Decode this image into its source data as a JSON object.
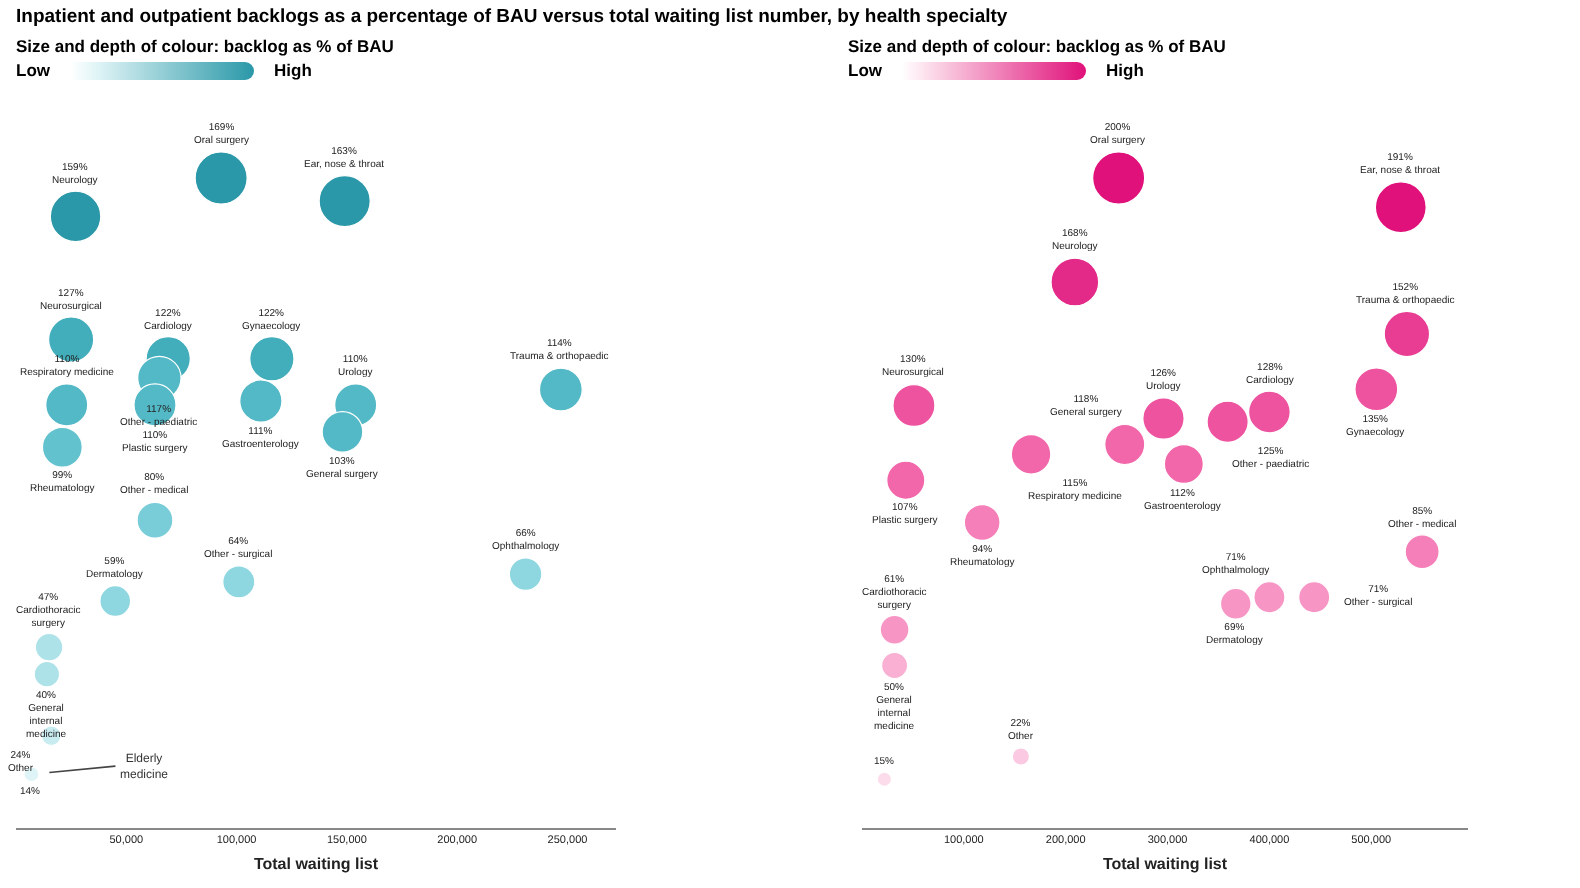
{
  "chart_data": [
    {
      "type": "bubble",
      "title": "Inpatient and outpatient backlogs as a percentage of BAU versus total waiting list number, by health specialty",
      "legend_title": "Size and depth of colour:  backlog as % of BAU",
      "xlabel": "Total waiting list",
      "tick_labels": "x",
      "xlim": [
        0,
        272000
      ],
      "xticks": [
        {
          "value": 50000,
          "label": "50,000"
        },
        {
          "value": 100000,
          "label": "100,000"
        },
        {
          "value": 150000,
          "label": "150,000"
        },
        {
          "value": 200000,
          "label": "200,000"
        },
        {
          "value": 250000,
          "label": "250,000"
        }
      ],
      "x": [
        27000,
        93000,
        149000,
        69000,
        116000,
        25000,
        65000,
        154000,
        247000,
        23000,
        111000,
        63000,
        148000,
        21000,
        63000,
        101000,
        231000,
        15000,
        45000,
        14000,
        16000,
        7000
      ],
      "values": [
        159,
        169,
        163,
        122,
        122,
        127,
        117,
        110,
        114,
        110,
        111,
        110,
        103,
        99,
        80,
        64,
        66,
        47,
        59,
        40,
        24,
        14
      ],
      "sizes": [
        159,
        169,
        163,
        122,
        122,
        127,
        117,
        110,
        114,
        110,
        111,
        110,
        103,
        99,
        80,
        64,
        66,
        47,
        59,
        40,
        24,
        14
      ],
      "colors": [
        "#2a98a8",
        "#2a98a8",
        "#2a98a8",
        "#42adbb",
        "#42adbb",
        "#42adbb",
        "#53b9c6",
        "#53b9c6",
        "#53b9c6",
        "#53b9c6",
        "#53b9c6",
        "#53b9c6",
        "#53b9c6",
        "#62c3cf",
        "#78cdd8",
        "#8fd7e0",
        "#8fd7e0",
        "#aee2e9",
        "#8fd7e0",
        "#aee2e9",
        "#c9ecf0",
        "#dff4f6"
      ],
      "value_labels": [
        "159%\nNeurology",
        "169%\nOral surgery",
        "163%\nEar, nose & throat",
        "122%\nCardiology",
        "122%\nGynaecology",
        "127%\nNeurosurgical",
        "117%\nOther - paediatric",
        "110%\nUrology",
        "114%\nTrauma & orthopaedic",
        "110%\nRespiratory medicine",
        "111%\nGastroenterology",
        "110%\nPlastic surgery",
        "103%\nGeneral surgery",
        "99%\nRheumatology",
        "80%\nOther - medical",
        "64%\nOther - surgical",
        "66%\nOphthalmology",
        "47%\nCardiothoracic\nsurgery",
        "59%\nDermatology",
        "40%\nGeneral\ninternal\nmedicine",
        "24%\nOther",
        "14%"
      ],
      "annotations": [
        "Low",
        "High",
        {
          "text": "Elderly\nmedicine",
          "x": 7000,
          "y": 14
        }
      ]
    },
    {
      "type": "bubble",
      "legend_title": "Size and depth of colour:  backlog as % of BAU",
      "xlabel": "Total waiting list",
      "tick_labels": "x",
      "xlim": [
        0,
        595000
      ],
      "xticks": [
        {
          "value": 100000,
          "label": "100,000"
        },
        {
          "value": 200000,
          "label": "200,000"
        },
        {
          "value": 300000,
          "label": "300,000"
        },
        {
          "value": 400000,
          "label": "400,000"
        },
        {
          "value": 500000,
          "label": "500,000"
        }
      ],
      "x": [
        252000,
        529000,
        209000,
        535000,
        51000,
        296000,
        400000,
        505000,
        166000,
        258000,
        359000,
        43000,
        118000,
        316000,
        400000,
        550000,
        32000,
        367000,
        444000,
        32000,
        22000,
        156000
      ],
      "values": [
        200,
        191,
        168,
        152,
        130,
        126,
        128,
        135,
        115,
        118,
        125,
        107,
        94,
        112,
        71,
        85,
        61,
        69,
        71,
        50,
        15,
        22
      ],
      "sizes": [
        200,
        191,
        168,
        152,
        130,
        126,
        128,
        135,
        115,
        118,
        125,
        107,
        94,
        112,
        71,
        85,
        61,
        69,
        71,
        50,
        15,
        22
      ],
      "colors": [
        "#e0117a",
        "#e0117a",
        "#e42a88",
        "#e93d93",
        "#ee539f",
        "#ee539f",
        "#ee539f",
        "#ee539f",
        "#f267aa",
        "#f267aa",
        "#ee539f",
        "#f267aa",
        "#f57fb8",
        "#f267aa",
        "#f796c5",
        "#f57fb8",
        "#f796c5",
        "#f796c5",
        "#f796c5",
        "#f9b0d3",
        "#fcdcea",
        "#fbc9e1"
      ],
      "value_labels": [
        "200%\nOral surgery",
        "191%\nEar, nose & throat",
        "168%\nNeurology",
        "152%\nTrauma & orthopaedic",
        "130%\nNeurosurgical",
        "126%\nUrology",
        "128%\nCardiology",
        "135%\nGynaecology",
        "115%\nRespiratory medicine",
        "118%\nGeneral surgery",
        "125%\nOther - paediatric",
        "107%\nPlastic surgery",
        "94%\nRheumatology",
        "112%\nGastroenterology",
        "71%\nOphthalmology",
        "85%\nOther - medical",
        "61%\nCardiothoracic\nsurgery",
        "69%\nDermatology",
        "71%\nOther - surgical",
        "50%\nGeneral\ninternal\nmedicine",
        "15%",
        "22%\nOther"
      ],
      "annotations": [
        "Low",
        "High"
      ]
    }
  ]
}
